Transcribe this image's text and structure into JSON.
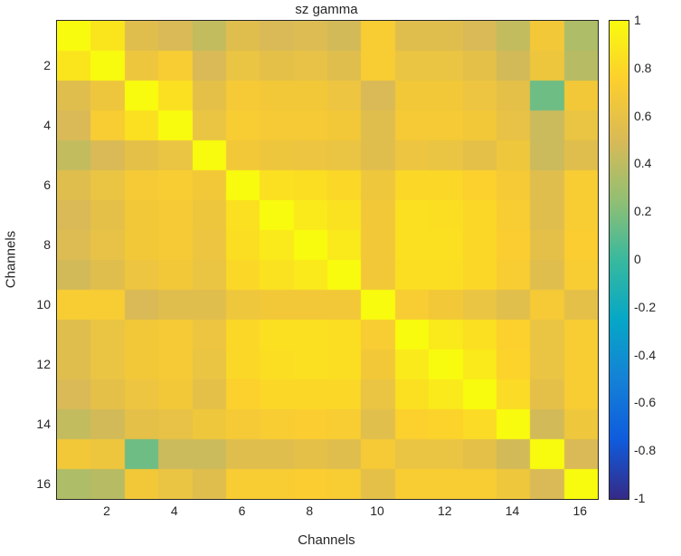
{
  "chart_data": {
    "type": "heatmap",
    "title": "sz gamma",
    "xlabel": "Channels",
    "ylabel": "Channels",
    "n_channels": 16,
    "x_range": [
      0.5,
      16.5
    ],
    "y_range": [
      0.5,
      16.5
    ],
    "x_tick_labels": [
      "2",
      "4",
      "6",
      "8",
      "10",
      "12",
      "14",
      "16"
    ],
    "y_tick_labels": [
      "2",
      "4",
      "6",
      "8",
      "10",
      "12",
      "14",
      "16"
    ],
    "colorbar": {
      "min": -1,
      "max": 1,
      "tick_labels": [
        "1",
        "0.8",
        "0.6",
        "0.4",
        "0.2",
        "0",
        "-0.2",
        "-0.4",
        "-0.6",
        "-0.8",
        "-1"
      ],
      "colormap": "parula",
      "stops": [
        "#352a87",
        "#0f5cdd",
        "#1481d6",
        "#06a7c6",
        "#38b99e",
        "#92bf73",
        "#d9ba56",
        "#fcce2e",
        "#f9fb0e"
      ]
    },
    "matrix": [
      [
        1.0,
        0.88,
        0.55,
        0.5,
        0.42,
        0.55,
        0.5,
        0.52,
        0.48,
        0.72,
        0.55,
        0.55,
        0.5,
        0.42,
        0.68,
        0.35
      ],
      [
        0.88,
        1.0,
        0.65,
        0.72,
        0.5,
        0.62,
        0.58,
        0.6,
        0.55,
        0.72,
        0.62,
        0.62,
        0.58,
        0.48,
        0.65,
        0.38
      ],
      [
        0.55,
        0.65,
        1.0,
        0.85,
        0.58,
        0.7,
        0.68,
        0.68,
        0.64,
        0.5,
        0.68,
        0.68,
        0.64,
        0.58,
        0.15,
        0.68
      ],
      [
        0.5,
        0.72,
        0.85,
        1.0,
        0.62,
        0.72,
        0.7,
        0.7,
        0.68,
        0.55,
        0.7,
        0.7,
        0.68,
        0.6,
        0.45,
        0.62
      ],
      [
        0.42,
        0.5,
        0.58,
        0.62,
        1.0,
        0.68,
        0.65,
        0.64,
        0.62,
        0.55,
        0.64,
        0.62,
        0.58,
        0.66,
        0.45,
        0.55
      ],
      [
        0.55,
        0.62,
        0.7,
        0.72,
        0.68,
        1.0,
        0.85,
        0.84,
        0.8,
        0.66,
        0.8,
        0.8,
        0.76,
        0.7,
        0.55,
        0.72
      ],
      [
        0.5,
        0.58,
        0.68,
        0.7,
        0.65,
        0.85,
        1.0,
        0.9,
        0.86,
        0.68,
        0.85,
        0.84,
        0.8,
        0.72,
        0.55,
        0.72
      ],
      [
        0.52,
        0.6,
        0.68,
        0.7,
        0.64,
        0.84,
        0.9,
        1.0,
        0.9,
        0.68,
        0.85,
        0.85,
        0.8,
        0.74,
        0.58,
        0.74
      ],
      [
        0.48,
        0.55,
        0.64,
        0.68,
        0.62,
        0.8,
        0.86,
        0.9,
        1.0,
        0.68,
        0.84,
        0.84,
        0.8,
        0.72,
        0.55,
        0.72
      ],
      [
        0.72,
        0.72,
        0.5,
        0.55,
        0.55,
        0.66,
        0.68,
        0.68,
        0.68,
        1.0,
        0.72,
        0.68,
        0.62,
        0.56,
        0.7,
        0.58
      ],
      [
        0.55,
        0.62,
        0.68,
        0.7,
        0.64,
        0.8,
        0.85,
        0.85,
        0.84,
        0.72,
        1.0,
        0.9,
        0.85,
        0.76,
        0.62,
        0.72
      ],
      [
        0.55,
        0.62,
        0.68,
        0.7,
        0.62,
        0.8,
        0.84,
        0.85,
        0.84,
        0.68,
        0.9,
        1.0,
        0.9,
        0.78,
        0.62,
        0.72
      ],
      [
        0.5,
        0.58,
        0.64,
        0.68,
        0.58,
        0.76,
        0.8,
        0.8,
        0.8,
        0.62,
        0.85,
        0.9,
        1.0,
        0.82,
        0.58,
        0.72
      ],
      [
        0.42,
        0.48,
        0.58,
        0.6,
        0.66,
        0.7,
        0.72,
        0.74,
        0.72,
        0.56,
        0.76,
        0.78,
        0.82,
        1.0,
        0.48,
        0.66
      ],
      [
        0.68,
        0.65,
        0.15,
        0.45,
        0.45,
        0.55,
        0.55,
        0.58,
        0.55,
        0.7,
        0.62,
        0.62,
        0.58,
        0.48,
        1.0,
        0.5
      ],
      [
        0.35,
        0.38,
        0.68,
        0.62,
        0.55,
        0.72,
        0.72,
        0.74,
        0.72,
        0.58,
        0.72,
        0.72,
        0.72,
        0.66,
        0.5,
        1.0
      ]
    ]
  }
}
